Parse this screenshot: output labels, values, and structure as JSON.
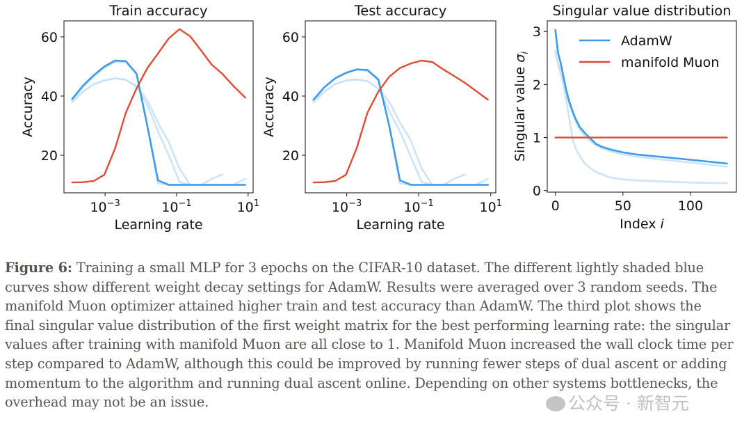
{
  "colors": {
    "adamw": "#3d9be9",
    "adamw_light": "#c6e1f8",
    "muon": "#e04b33",
    "axis": "#222222",
    "caption_text": "#5b534d"
  },
  "chart_data": [
    {
      "type": "line",
      "title": "Train accuracy",
      "xlabel": "Learning rate",
      "ylabel": "Accuracy",
      "xscale": "log",
      "xlim_log10": [
        -4.15,
        1.14
      ],
      "ylim": [
        7.3,
        65.4
      ],
      "xticks": [
        {
          "value_log10": -3,
          "label_base": "10",
          "label_exp": "−3"
        },
        {
          "value_log10": -1,
          "label_base": "10",
          "label_exp": "−1"
        },
        {
          "value_log10": 1,
          "label_base": "10",
          "label_exp": "1"
        }
      ],
      "yticks": [
        {
          "value": 20,
          "label": "20"
        },
        {
          "value": 40,
          "label": "40"
        },
        {
          "value": 60,
          "label": "60"
        }
      ],
      "series": [
        {
          "name": "AdamW (light 1)",
          "style": "light",
          "x_log10": [
            -3.92,
            -3.62,
            -3.32,
            -3.02,
            -2.72,
            -2.42,
            -2.12,
            -1.82,
            -1.52,
            -1.22,
            -0.92,
            -0.62,
            -0.32,
            -0.02,
            0.28
          ],
          "y": [
            38,
            41.5,
            44,
            45.3,
            46,
            45.5,
            43.5,
            38.5,
            31,
            24.5,
            15.5,
            10,
            10,
            12,
            13.5
          ]
        },
        {
          "name": "AdamW (light 2)",
          "style": "light",
          "x_log10": [
            -3.92,
            -3.62,
            -3.32,
            -3.02,
            -2.72,
            -2.42,
            -2.12,
            -1.82,
            -1.52,
            -1.22,
            -0.92,
            -0.62,
            -0.32,
            -0.02,
            0.28,
            0.58,
            0.92
          ],
          "y": [
            38,
            41.5,
            44,
            45.3,
            46,
            45.5,
            43,
            37,
            28,
            20,
            11,
            10,
            10,
            10,
            10,
            10,
            12
          ]
        },
        {
          "name": "AdamW (light 3)",
          "style": "light",
          "x_log10": [
            -3.92,
            -3.62,
            -3.32,
            -3.02,
            -2.72,
            -2.42,
            -2.12,
            -1.82,
            -1.52,
            -1.22,
            -0.92,
            -0.62,
            -0.32,
            -0.02,
            0.28,
            0.58,
            0.92
          ],
          "y": [
            38.5,
            43,
            46.5,
            49.5,
            51.5,
            51.5,
            47.5,
            30,
            10.5,
            10,
            10,
            10,
            10,
            10,
            10,
            10,
            10
          ]
        },
        {
          "name": "AdamW",
          "style": "main",
          "x_log10": [
            -3.92,
            -3.62,
            -3.32,
            -3.02,
            -2.72,
            -2.42,
            -2.12,
            -1.82,
            -1.52,
            -1.22,
            -0.92,
            -0.62,
            -0.32,
            -0.02,
            0.28,
            0.58,
            0.92
          ],
          "y": [
            39,
            43.5,
            47,
            50,
            52,
            51.8,
            47.5,
            30,
            11.5,
            10,
            10,
            10,
            10,
            10,
            10,
            10,
            10
          ]
        },
        {
          "name": "manifold Muon",
          "style": "muon",
          "x_log10": [
            -3.92,
            -3.62,
            -3.32,
            -3.02,
            -2.72,
            -2.42,
            -2.12,
            -1.82,
            -1.52,
            -1.22,
            -0.92,
            -0.62,
            -0.32,
            -0.02,
            0.28,
            0.58,
            0.92
          ],
          "y": [
            10.8,
            10.9,
            11.3,
            13.4,
            22.3,
            34.4,
            42.6,
            49.4,
            54.4,
            59.5,
            62.6,
            60.2,
            55.5,
            50.6,
            47.5,
            43.5,
            39.5
          ]
        }
      ]
    },
    {
      "type": "line",
      "title": "Test accuracy",
      "xlabel": "Learning rate",
      "ylabel": "Accuracy",
      "xscale": "log",
      "xlim_log10": [
        -4.15,
        1.14
      ],
      "ylim": [
        7.3,
        65.4
      ],
      "xticks": [
        {
          "value_log10": -3,
          "label_base": "10",
          "label_exp": "−3"
        },
        {
          "value_log10": -1,
          "label_base": "10",
          "label_exp": "−1"
        },
        {
          "value_log10": 1,
          "label_base": "10",
          "label_exp": "1"
        }
      ],
      "yticks": [
        {
          "value": 20,
          "label": "20"
        },
        {
          "value": 40,
          "label": "40"
        },
        {
          "value": 60,
          "label": "60"
        }
      ],
      "series": [
        {
          "name": "AdamW (light 1)",
          "style": "light",
          "x_log10": [
            -3.92,
            -3.62,
            -3.32,
            -3.02,
            -2.72,
            -2.42,
            -2.12,
            -1.82,
            -1.52,
            -1.22,
            -0.92,
            -0.62,
            -0.32,
            -0.02,
            0.28
          ],
          "y": [
            38,
            41.5,
            44,
            45.3,
            45.6,
            45,
            42.5,
            38,
            31,
            25,
            15.5,
            10,
            10,
            12,
            13.5
          ]
        },
        {
          "name": "AdamW (light 2)",
          "style": "light",
          "x_log10": [
            -3.92,
            -3.62,
            -3.32,
            -3.02,
            -2.72,
            -2.42,
            -2.12,
            -1.82,
            -1.52,
            -1.22,
            -0.92,
            -0.62,
            -0.32,
            -0.02,
            0.28,
            0.58,
            0.92
          ],
          "y": [
            38,
            41.5,
            44,
            45.3,
            45.6,
            45,
            42.5,
            35,
            28,
            19.5,
            11,
            10,
            10,
            10,
            10,
            10,
            12
          ]
        },
        {
          "name": "AdamW (light 3)",
          "style": "light",
          "x_log10": [
            -3.92,
            -3.62,
            -3.32,
            -3.02,
            -2.72,
            -2.42,
            -2.12,
            -1.82,
            -1.52,
            -1.22,
            -0.92,
            -0.62,
            -0.32,
            -0.02,
            0.28,
            0.58,
            0.92
          ],
          "y": [
            38.5,
            43,
            46,
            48,
            49,
            48.5,
            46,
            30,
            10.5,
            10,
            10,
            10,
            10,
            10,
            10,
            10,
            10
          ]
        },
        {
          "name": "AdamW",
          "style": "main",
          "x_log10": [
            -3.92,
            -3.62,
            -3.32,
            -3.02,
            -2.72,
            -2.42,
            -2.12,
            -1.82,
            -1.52,
            -1.22,
            -0.92,
            -0.62,
            -0.32,
            -0.02,
            0.28,
            0.58,
            0.92
          ],
          "y": [
            38.8,
            43,
            46,
            47.8,
            49,
            48.8,
            45.5,
            30,
            11.5,
            10,
            10,
            10,
            10,
            10,
            10,
            10,
            10
          ]
        },
        {
          "name": "manifold Muon",
          "style": "muon",
          "x_log10": [
            -3.92,
            -3.62,
            -3.32,
            -3.02,
            -2.72,
            -2.42,
            -2.12,
            -1.82,
            -1.52,
            -1.22,
            -0.92,
            -0.62,
            -0.32,
            -0.02,
            0.28,
            0.58,
            0.92
          ],
          "y": [
            10.8,
            10.9,
            11.3,
            13.4,
            22.5,
            34.5,
            41.5,
            46.5,
            49.5,
            51,
            52,
            51.5,
            49,
            46.8,
            44.5,
            41.8,
            38.8
          ]
        }
      ]
    },
    {
      "type": "line",
      "title": "Singular value distribution",
      "xlabel": "Index i",
      "ylabel": "Singular value σ_i",
      "xlim": [
        -6,
        134
      ],
      "ylim": [
        -0.03,
        3.2
      ],
      "xticks": [
        {
          "value": 0,
          "label": "0"
        },
        {
          "value": 50,
          "label": "50"
        },
        {
          "value": 100,
          "label": "100"
        }
      ],
      "yticks": [
        {
          "value": 0,
          "label": "0"
        },
        {
          "value": 1,
          "label": "1"
        },
        {
          "value": 2,
          "label": "2"
        },
        {
          "value": 3,
          "label": "3"
        }
      ],
      "legend": {
        "position": "top-right",
        "entries": [
          {
            "label": "AdamW",
            "style": "main"
          },
          {
            "label": "manifold Muon",
            "style": "muon"
          }
        ]
      },
      "series": [
        {
          "name": "AdamW (light low)",
          "style": "light",
          "x": [
            0,
            2,
            4,
            6,
            8,
            10,
            12,
            13,
            15,
            18,
            22,
            26,
            30,
            35,
            40,
            50,
            60,
            80,
            100,
            127
          ],
          "y": [
            2.65,
            2.4,
            2.2,
            2.0,
            1.7,
            1.4,
            1.1,
            0.95,
            0.8,
            0.65,
            0.5,
            0.42,
            0.35,
            0.3,
            0.25,
            0.21,
            0.19,
            0.17,
            0.15,
            0.14
          ]
        },
        {
          "name": "AdamW (light mid)",
          "style": "light",
          "x": [
            0,
            2,
            4,
            6,
            8,
            10,
            12,
            15,
            18,
            22,
            26,
            30,
            35,
            40,
            50,
            60,
            80,
            100,
            127
          ],
          "y": [
            2.6,
            2.4,
            2.25,
            2.05,
            1.85,
            1.65,
            1.5,
            1.3,
            1.15,
            1.02,
            0.93,
            0.85,
            0.79,
            0.75,
            0.68,
            0.64,
            0.58,
            0.53,
            0.45
          ]
        },
        {
          "name": "AdamW",
          "style": "main",
          "x": [
            0,
            1,
            2,
            4,
            6,
            8,
            10,
            12,
            15,
            18,
            22,
            26,
            30,
            35,
            40,
            50,
            60,
            80,
            100,
            127
          ],
          "y": [
            3.03,
            2.8,
            2.6,
            2.4,
            2.15,
            1.9,
            1.7,
            1.55,
            1.35,
            1.2,
            1.08,
            0.98,
            0.88,
            0.82,
            0.78,
            0.72,
            0.68,
            0.63,
            0.58,
            0.51
          ]
        },
        {
          "name": "manifold Muon",
          "style": "muon",
          "x": [
            0,
            127
          ],
          "y": [
            1.0,
            1.0
          ]
        }
      ]
    }
  ],
  "caption": {
    "label": "Figure 6:",
    "lines": [
      " Training a small MLP for 3 epochs on the CIFAR-10 dataset. The different lightly shaded blue",
      "curves show different weight decay settings for AdamW. Results were averaged over 3 random seeds. The",
      "manifold Muon optimizer attained higher train and test accuracy than AdamW. The third plot shows the",
      "final singular value distribution of the first weight matrix for the best performing learning rate: the singular",
      "values after training with manifold Muon are all close to 1. Manifold Muon increased the wall clock time per",
      "step compared to AdamW, although this could be improved by running fewer steps of dual ascent or adding",
      "momentum to the algorithm and running dual ascent online. Depending on other systems bottlenecks, the",
      "overhead may not be an issue."
    ]
  },
  "watermark": {
    "text": "公众号 · 新智元"
  }
}
